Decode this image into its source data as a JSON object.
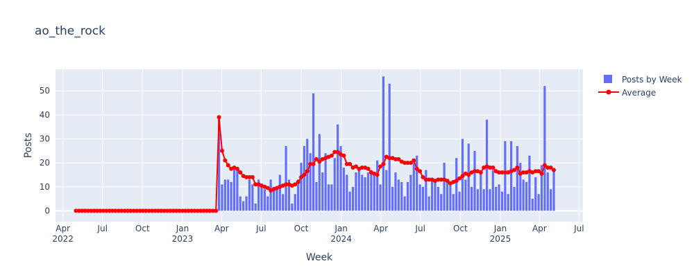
{
  "chart_data": {
    "type": "bar+line",
    "title": "ao_the_rock",
    "xlabel": "Week",
    "ylabel": "Posts",
    "ylim": [
      -4.5,
      59
    ],
    "xlim": [
      "2022-03-15",
      "2025-07-10"
    ],
    "yticks": [
      0,
      10,
      20,
      30,
      40,
      50
    ],
    "xticks": [
      {
        "date": "2022-04-01",
        "label": "Apr",
        "year": "2022"
      },
      {
        "date": "2022-07-01",
        "label": "Jul",
        "year": ""
      },
      {
        "date": "2022-10-01",
        "label": "Oct",
        "year": ""
      },
      {
        "date": "2023-01-01",
        "label": "Jan",
        "year": "2023"
      },
      {
        "date": "2023-04-01",
        "label": "Apr",
        "year": ""
      },
      {
        "date": "2023-07-01",
        "label": "Jul",
        "year": ""
      },
      {
        "date": "2023-10-01",
        "label": "Oct",
        "year": ""
      },
      {
        "date": "2024-01-01",
        "label": "Jan",
        "year": "2024"
      },
      {
        "date": "2024-04-01",
        "label": "Apr",
        "year": ""
      },
      {
        "date": "2024-07-01",
        "label": "Jul",
        "year": ""
      },
      {
        "date": "2024-10-01",
        "label": "Oct",
        "year": ""
      },
      {
        "date": "2025-01-01",
        "label": "Jan",
        "year": "2025"
      },
      {
        "date": "2025-04-01",
        "label": "Apr",
        "year": ""
      },
      {
        "date": "2025-07-01",
        "label": "Jul",
        "year": ""
      }
    ],
    "first_week": "2022-05-01",
    "grid": true,
    "legend_position": "right",
    "colors": {
      "bar": "#636efa",
      "line": "#ff0000",
      "plot_bg": "#e5ecf6",
      "grid": "#ffffff"
    },
    "series": [
      {
        "name": "Posts by Week",
        "type": "bar",
        "values": [
          0,
          0,
          0,
          0,
          0,
          0,
          0,
          0,
          0,
          0,
          0,
          0,
          0,
          0,
          0,
          0,
          0,
          0,
          0,
          0,
          0,
          0,
          0,
          0,
          0,
          0,
          0,
          0,
          0,
          0,
          0,
          0,
          0,
          0,
          0,
          0,
          0,
          0,
          0,
          0,
          0,
          0,
          0,
          0,
          0,
          0,
          0,
          39,
          11,
          13,
          13,
          12,
          18,
          18,
          6,
          4,
          6,
          13,
          11,
          3,
          13,
          10,
          9,
          6,
          13,
          10,
          9,
          15,
          7,
          27,
          13,
          3,
          7,
          13,
          20,
          27,
          30,
          24,
          49,
          12,
          32,
          16,
          24,
          11,
          11,
          22,
          36,
          27,
          18,
          15,
          8,
          10,
          16,
          17,
          15,
          14,
          16,
          17,
          16,
          21,
          11,
          56,
          17,
          53,
          10,
          16,
          13,
          12,
          6,
          12,
          15,
          20,
          23,
          11,
          10,
          17,
          6,
          13,
          13,
          10,
          7,
          20,
          13,
          11,
          7,
          22,
          8,
          30,
          13,
          28,
          10,
          25,
          9,
          17,
          9,
          38,
          9,
          17,
          10,
          11,
          8,
          29,
          7,
          29,
          10,
          27,
          20,
          13,
          12,
          23,
          5,
          14,
          7,
          19,
          52,
          16,
          9,
          17
        ]
      },
      {
        "name": "Average",
        "type": "line",
        "values": [
          0,
          0,
          0,
          0,
          0,
          0,
          0,
          0,
          0,
          0,
          0,
          0,
          0,
          0,
          0,
          0,
          0,
          0,
          0,
          0,
          0,
          0,
          0,
          0,
          0,
          0,
          0,
          0,
          0,
          0,
          0,
          0,
          0,
          0,
          0,
          0,
          0,
          0,
          0,
          0,
          0,
          0,
          0,
          0,
          0,
          0,
          0,
          39,
          25,
          21,
          19,
          17.5,
          18,
          17.5,
          16,
          14.5,
          14,
          14,
          14,
          11,
          11,
          10.5,
          10,
          9.5,
          8.5,
          9,
          9.5,
          10,
          10.5,
          11,
          11,
          10.5,
          11,
          12,
          14,
          15,
          16.5,
          19.5,
          19.5,
          21.5,
          20.5,
          21.5,
          22,
          22.5,
          23,
          24.5,
          24.5,
          23.5,
          23,
          19.5,
          19.5,
          18,
          18.5,
          17.5,
          18,
          18,
          17.5,
          16,
          15.5,
          15,
          18.5,
          19.5,
          22.5,
          22,
          22,
          21.5,
          21.5,
          20.5,
          20,
          20,
          20,
          21,
          17.5,
          16.5,
          14,
          13,
          13,
          13,
          12.5,
          13,
          13,
          13,
          12.5,
          11.5,
          12,
          12.5,
          13.5,
          14.5,
          15.5,
          15,
          16,
          16.5,
          16.5,
          16,
          18,
          18.5,
          18,
          18,
          16.5,
          16,
          16,
          16,
          16,
          16.5,
          17,
          18,
          15.5,
          16,
          16,
          16.5,
          16,
          16.5,
          16.5,
          15.5,
          19,
          18,
          18,
          17
        ]
      }
    ]
  }
}
